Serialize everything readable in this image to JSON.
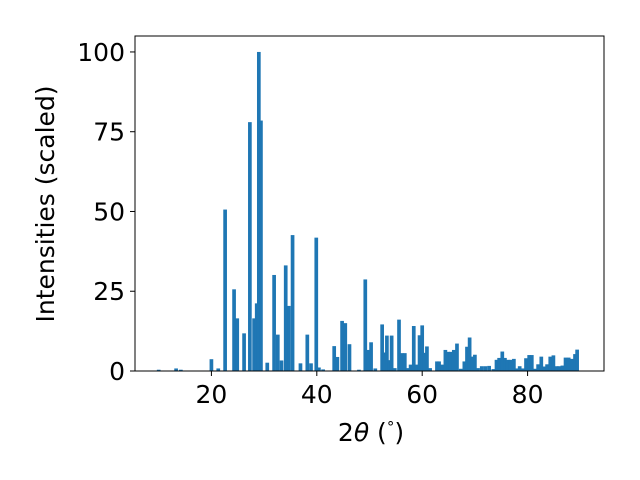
{
  "chart_data": {
    "type": "bar",
    "title": "",
    "xlabel_parts": [
      "2",
      "θ",
      " (",
      "°",
      ")"
    ],
    "ylabel": "Intensities (scaled)",
    "xlim": [
      5.5,
      94.5
    ],
    "ylim": [
      0,
      105
    ],
    "xticks": [
      20,
      40,
      60,
      80
    ],
    "yticks": [
      0,
      25,
      50,
      75,
      100
    ],
    "bar_color": "#1f77b4",
    "bar_width": 0.7,
    "x": [
      10.0,
      13.3,
      14.2,
      20.0,
      21.3,
      22.6,
      24.3,
      24.9,
      26.2,
      27.3,
      28.1,
      28.6,
      29.0,
      29.4,
      30.6,
      31.9,
      32.6,
      33.3,
      34.1,
      34.7,
      35.4,
      36.9,
      38.2,
      38.9,
      39.9,
      40.4,
      41.2,
      43.3,
      43.9,
      44.8,
      45.4,
      46.2,
      48.0,
      49.2,
      49.7,
      50.3,
      51.1,
      52.4,
      52.8,
      53.3,
      53.7,
      54.2,
      54.8,
      55.6,
      56.1,
      56.7,
      57.2,
      57.8,
      58.4,
      58.9,
      59.5,
      60.0,
      60.4,
      60.9,
      61.5,
      62.8,
      63.2,
      63.8,
      64.4,
      64.9,
      65.4,
      66.0,
      66.6,
      67.3,
      68.0,
      68.5,
      69.0,
      69.5,
      70.0,
      70.6,
      71.3,
      72.0,
      72.7,
      73.5,
      74.1,
      74.6,
      75.2,
      75.7,
      76.2,
      76.8,
      77.4,
      77.9,
      78.5,
      79.1,
      79.7,
      80.3,
      80.8,
      81.4,
      82.0,
      82.6,
      83.1,
      83.7,
      84.3,
      84.9,
      85.5,
      86.0,
      86.6,
      87.2,
      87.8,
      88.4,
      89.0,
      89.4
    ],
    "values": [
      0.4,
      0.8,
      0.4,
      3.7,
      0.8,
      50.6,
      25.6,
      16.5,
      11.8,
      78.0,
      16.5,
      21.2,
      100.0,
      78.5,
      2.6,
      30.1,
      11.4,
      3.3,
      33.1,
      20.4,
      42.6,
      2.4,
      11.4,
      2.4,
      41.8,
      1.1,
      0.5,
      7.8,
      4.4,
      15.7,
      15.0,
      8.4,
      0.4,
      28.7,
      6.6,
      9.0,
      0.8,
      14.6,
      5.8,
      11.1,
      3.4,
      11.1,
      0.9,
      16.1,
      5.6,
      5.6,
      0.9,
      2.0,
      14.1,
      2.0,
      11.2,
      14.3,
      5.7,
      7.7,
      0.9,
      3.0,
      3.0,
      2.0,
      6.6,
      6.0,
      6.0,
      6.6,
      8.6,
      0.7,
      3.0,
      7.6,
      10.5,
      4.5,
      5.1,
      0.9,
      1.5,
      1.5,
      1.6,
      0.6,
      3.5,
      4.1,
      6.1,
      4.1,
      3.5,
      3.5,
      3.8,
      0.8,
      1.5,
      0.8,
      4.0,
      5.0,
      5.0,
      0.7,
      2.1,
      4.5,
      1.4,
      2.1,
      4.5,
      4.9,
      1.5,
      1.5,
      1.7,
      4.2,
      4.2,
      3.8,
      5.3,
      6.7
    ]
  }
}
